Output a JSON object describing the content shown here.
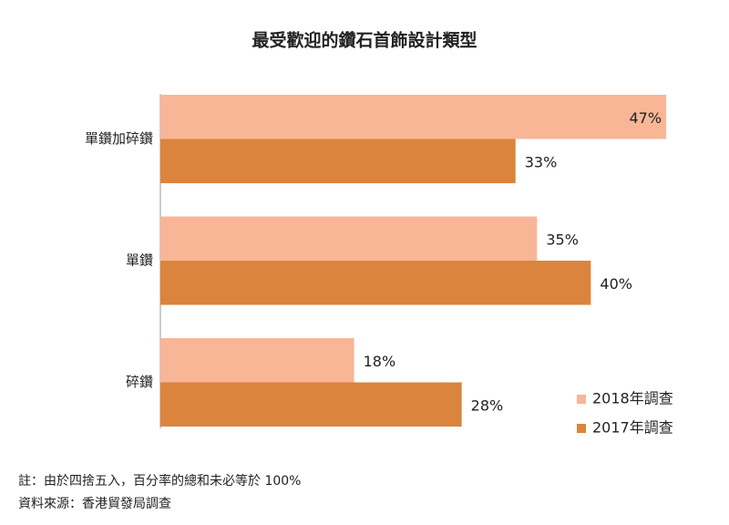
{
  "chart_data": {
    "type": "bar",
    "orientation": "horizontal",
    "title": "最受歡迎的鑽石首飾設計類型",
    "categories": [
      "單鑽加碎鑽",
      "單鑽",
      "碎鑽"
    ],
    "series": [
      {
        "name": "2018年調查",
        "color": "#f8b697",
        "values": [
          47,
          35,
          18
        ],
        "value_labels": [
          "47%",
          "35%",
          "18%"
        ]
      },
      {
        "name": "2017年調查",
        "color": "#db843d",
        "values": [
          33,
          40,
          28
        ],
        "value_labels": [
          "33%",
          "40%",
          "28%"
        ]
      }
    ],
    "legend": "bottom-right",
    "footnote": "註：由於四捨五入，百分率的總和未必等於 100%",
    "source": "資料來源：香港貿發局調查"
  }
}
